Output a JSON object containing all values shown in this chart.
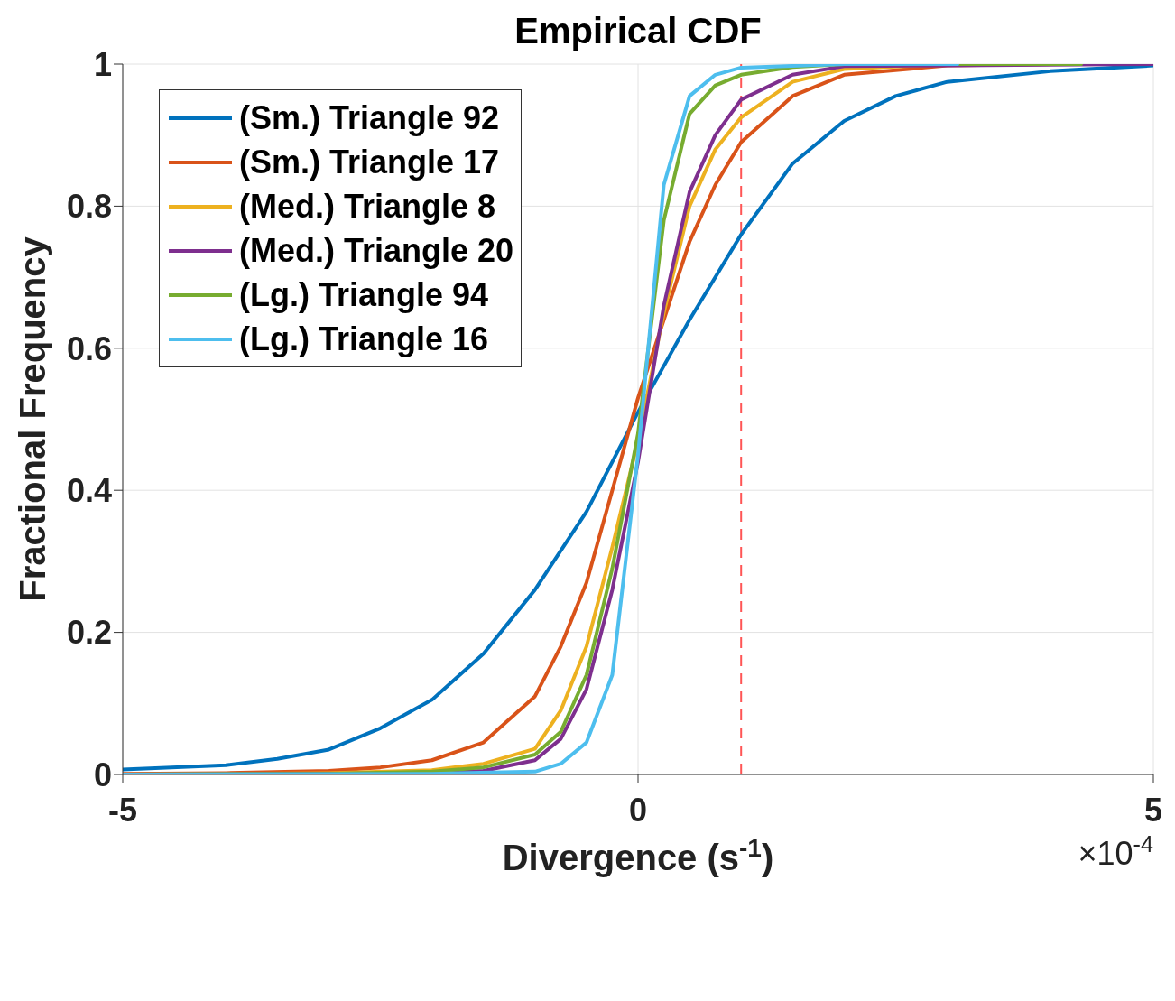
{
  "chart_data": {
    "type": "line",
    "title": "Empirical CDF",
    "xlabel": "Divergence (s$^{-1}$)",
    "ylabel": "Fractional Frequency",
    "annotations": [
      "×10$^{-4}$"
    ],
    "xlim": [
      -5,
      5
    ],
    "xticks": [
      -5,
      0,
      5
    ],
    "ylim": [
      0,
      1
    ],
    "yticks": [
      0,
      0.2,
      0.4,
      0.6,
      0.8,
      1
    ],
    "grid": true,
    "legend": "top left",
    "line_style": "solid",
    "ref_lines": [
      {
        "axis": "x",
        "value": 1,
        "color": "#ff5555",
        "line_style": "dashed"
      }
    ],
    "series": [
      {
        "name": "(Sm.) Triangle 92",
        "color": "#0072bd",
        "x": [
          -5,
          -4,
          -3.5,
          -3,
          -2.5,
          -2,
          -1.5,
          -1,
          -0.5,
          0,
          0.5,
          1,
          1.5,
          2,
          2.5,
          3,
          4,
          5
        ],
        "values": [
          0.007,
          0.013,
          0.022,
          0.035,
          0.065,
          0.105,
          0.17,
          0.26,
          0.37,
          0.51,
          0.64,
          0.76,
          0.86,
          0.92,
          0.955,
          0.975,
          0.99,
          0.998
        ]
      },
      {
        "name": "(Sm.) Triangle 17",
        "color": "#d95319",
        "x": [
          -5,
          -4,
          -3,
          -2.5,
          -2,
          -1.5,
          -1,
          -0.75,
          -0.5,
          -0.25,
          0,
          0.25,
          0.5,
          0.75,
          1,
          1.5,
          2,
          3,
          4
        ],
        "values": [
          0.001,
          0.002,
          0.005,
          0.01,
          0.02,
          0.045,
          0.11,
          0.18,
          0.27,
          0.4,
          0.53,
          0.64,
          0.75,
          0.83,
          0.89,
          0.955,
          0.985,
          0.998,
          1
        ]
      },
      {
        "name": "(Med.) Triangle 8",
        "color": "#edb120",
        "x": [
          -5,
          -3,
          -2,
          -1.5,
          -1,
          -0.75,
          -0.5,
          -0.25,
          0,
          0.25,
          0.5,
          0.75,
          1,
          1.5,
          2,
          3
        ],
        "values": [
          0,
          0.002,
          0.006,
          0.015,
          0.036,
          0.09,
          0.18,
          0.32,
          0.47,
          0.65,
          0.8,
          0.88,
          0.925,
          0.975,
          0.993,
          1
        ]
      },
      {
        "name": "(Med.) Triangle 20",
        "color": "#7e2f8e",
        "x": [
          -5,
          -2,
          -1.5,
          -1,
          -0.75,
          -0.5,
          -0.25,
          0,
          0.25,
          0.5,
          0.75,
          1,
          1.5,
          2,
          5
        ],
        "values": [
          0,
          0.002,
          0.005,
          0.02,
          0.05,
          0.12,
          0.26,
          0.44,
          0.66,
          0.82,
          0.9,
          0.95,
          0.985,
          0.997,
          1
        ]
      },
      {
        "name": "(Lg.) Triangle 94",
        "color": "#77ac30",
        "x": [
          -5,
          -3,
          -2,
          -1.5,
          -1,
          -0.75,
          -0.5,
          -0.25,
          0,
          0.25,
          0.5,
          0.75,
          1,
          1.5,
          2,
          4.3
        ],
        "values": [
          0,
          0.001,
          0.004,
          0.01,
          0.028,
          0.06,
          0.14,
          0.29,
          0.48,
          0.78,
          0.93,
          0.97,
          0.985,
          0.996,
          1,
          1
        ]
      },
      {
        "name": "(Lg.) Triangle 16",
        "color": "#4dbeee",
        "x": [
          -5,
          -2,
          -1,
          -0.75,
          -0.5,
          -0.25,
          0,
          0.25,
          0.5,
          0.75,
          1,
          2,
          3.1
        ],
        "values": [
          0,
          0.001,
          0.004,
          0.015,
          0.045,
          0.14,
          0.45,
          0.83,
          0.955,
          0.985,
          0.995,
          1,
          1
        ]
      }
    ]
  }
}
